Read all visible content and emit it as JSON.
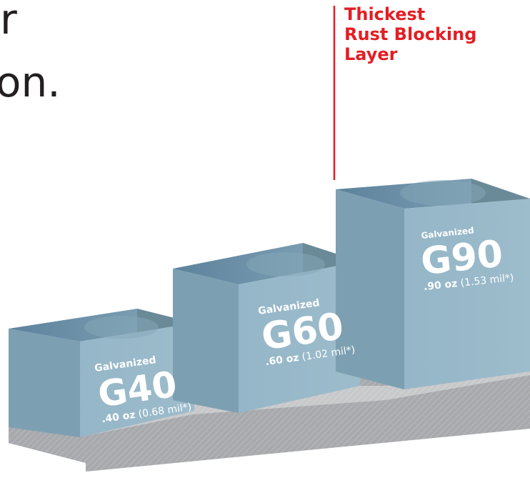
{
  "heading": {
    "line1": "r",
    "line2": "on."
  },
  "callout": {
    "lines": [
      "Thickest",
      "Rust Blocking",
      "Layer"
    ],
    "color": "#e31e24"
  },
  "colors": {
    "block_front": "#8fb3c5",
    "block_top": "#7498ac",
    "block_side": "#6b8a98",
    "base": "#a7a9ac"
  },
  "chart_data": {
    "type": "bar",
    "categories": [
      "G40",
      "G60",
      "G90"
    ],
    "series_label": "Galvanized",
    "values_oz": [
      0.4,
      0.6,
      0.9
    ],
    "values_mil": [
      0.68,
      1.02,
      1.53
    ],
    "value_labels": [
      ".40 oz",
      ".60 oz",
      ".90 oz"
    ],
    "mil_labels": [
      "(0.68 mil*)",
      "(1.02 mil*)",
      "(1.53 mil*)"
    ]
  }
}
